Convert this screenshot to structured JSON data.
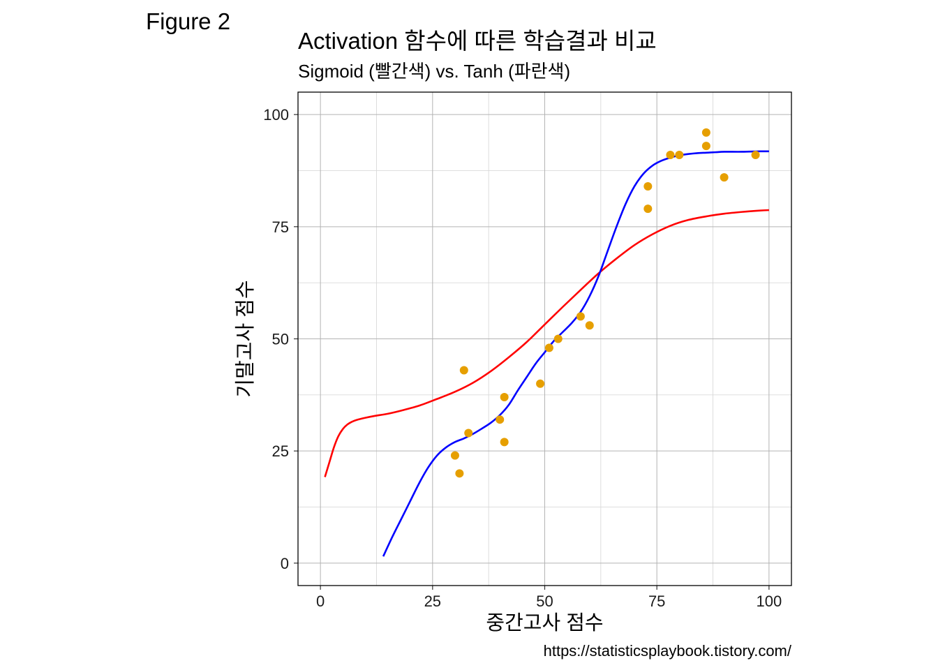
{
  "figure_label": "Figure 2",
  "source_url": "https://statisticsplaybook.tistory.com/",
  "chart_data": {
    "type": "scatter",
    "title": "Activation 함수에 따른 학습결과 비교",
    "subtitle": "Sigmoid (빨간색) vs. Tanh (파란색)",
    "xlabel": "중간고사 점수",
    "ylabel": "기말고사 점수",
    "xlim": [
      -5,
      105
    ],
    "ylim": [
      -5,
      105
    ],
    "xticks": [
      0,
      25,
      50,
      75,
      100
    ],
    "xtick_labels": [
      "0",
      "25",
      "50",
      "75",
      "100"
    ],
    "yticks": [
      0,
      25,
      50,
      75,
      100
    ],
    "ytick_labels": [
      "0",
      "25",
      "50",
      "75",
      "100"
    ],
    "minor_breaks": [
      12.5,
      37.5,
      62.5,
      87.5
    ],
    "grid": true,
    "points": {
      "color": "#E69F00",
      "x": [
        32,
        33,
        30,
        31,
        40,
        41,
        41,
        49,
        51,
        53,
        58,
        60,
        73,
        73,
        78,
        80,
        86,
        86,
        90,
        97
      ],
      "y": [
        43,
        29,
        24,
        20,
        32,
        37,
        27,
        40,
        48,
        50,
        55,
        53,
        84,
        79,
        91,
        91,
        96,
        93,
        86,
        91
      ]
    },
    "series": [
      {
        "name": "Sigmoid",
        "color": "#FF0000",
        "x": [
          1,
          2,
          3,
          4,
          5,
          6,
          7,
          8,
          10,
          12,
          15,
          18,
          22,
          26,
          30,
          34,
          38,
          42,
          46,
          50,
          54,
          58,
          62,
          66,
          70,
          74,
          78,
          82,
          86,
          90,
          94,
          98,
          100
        ],
        "y": [
          19.2,
          22.5,
          25.8,
          28.3,
          29.9,
          30.9,
          31.5,
          31.9,
          32.4,
          32.8,
          33.3,
          34.0,
          35.1,
          36.6,
          38.2,
          40.2,
          42.8,
          45.9,
          49.3,
          53.2,
          57.1,
          60.9,
          64.6,
          67.9,
          70.9,
          73.3,
          75.2,
          76.5,
          77.3,
          77.9,
          78.3,
          78.6,
          78.7
        ]
      },
      {
        "name": "Tanh",
        "color": "#0000FF",
        "x": [
          14,
          16,
          18,
          20,
          22,
          24,
          26,
          28,
          30,
          32,
          34,
          36,
          38,
          40,
          42,
          44,
          46,
          48,
          50,
          52,
          54,
          56,
          58,
          60,
          62,
          64,
          66,
          68,
          70,
          72,
          74,
          76,
          78,
          80,
          82,
          84,
          86,
          88,
          90,
          94,
          98,
          100
        ],
        "y": [
          1.5,
          5.8,
          9.8,
          13.8,
          17.8,
          21.3,
          24.0,
          25.8,
          27.0,
          27.8,
          28.8,
          30.0,
          31.3,
          33.0,
          35.3,
          38.5,
          41.5,
          44.5,
          47.0,
          49.5,
          51.5,
          53.5,
          56.0,
          59.5,
          64.0,
          69.5,
          75.0,
          80.0,
          84.0,
          86.8,
          88.6,
          89.7,
          90.4,
          90.9,
          91.2,
          91.4,
          91.5,
          91.6,
          91.7,
          91.7,
          91.8,
          91.8
        ]
      }
    ]
  }
}
